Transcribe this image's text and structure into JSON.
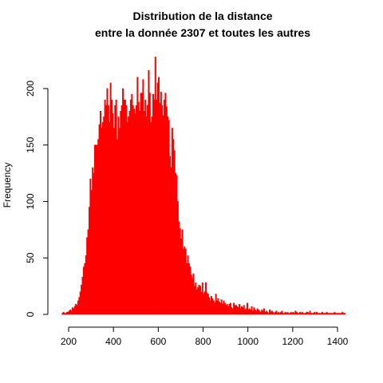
{
  "chart_data": {
    "type": "bar",
    "title_lines": [
      "Distribution de la distance",
      "entre la donnée 2307 et toutes les autres"
    ],
    "xlabel": "",
    "ylabel": "Frequency",
    "xlim": [
      150,
      1450
    ],
    "ylim": [
      0,
      228
    ],
    "x_ticks": [
      200,
      400,
      600,
      800,
      1000,
      1200,
      1400
    ],
    "x_tick_labels": [
      "200",
      "400",
      "600",
      "800",
      "1000",
      "1200",
      "1400"
    ],
    "y_ticks": [
      0,
      50,
      100,
      150,
      200
    ],
    "y_tick_labels": [
      "0",
      "50",
      "100",
      "150",
      "200"
    ],
    "bar_color": "#ff0000",
    "bin_width": 5,
    "bins_start": 170,
    "values": [
      1,
      2,
      1,
      1,
      2,
      2,
      3,
      4,
      3,
      6,
      5,
      7,
      9,
      8,
      12,
      15,
      20,
      26,
      33,
      42,
      45,
      52,
      68,
      75,
      95,
      120,
      110,
      130,
      125,
      150,
      150,
      150,
      155,
      168,
      180,
      165,
      170,
      175,
      190,
      185,
      200,
      185,
      170,
      205,
      190,
      178,
      165,
      185,
      190,
      155,
      175,
      165,
      180,
      185,
      200,
      190,
      190,
      185,
      170,
      175,
      180,
      190,
      195,
      185,
      182,
      178,
      185,
      210,
      188,
      180,
      196,
      196,
      208,
      180,
      190,
      175,
      185,
      216,
      196,
      170,
      175,
      195,
      190,
      228,
      190,
      205,
      210,
      187,
      197,
      185,
      176,
      190,
      196,
      184,
      175,
      172,
      140,
      130,
      165,
      155,
      145,
      125,
      123,
      100,
      82,
      76,
      67,
      75,
      58,
      60,
      58,
      45,
      52,
      45,
      42,
      35,
      32,
      36,
      25,
      28,
      22,
      24,
      26,
      25,
      20,
      28,
      18,
      20,
      28,
      19,
      18,
      15,
      12,
      16,
      14,
      12,
      10,
      18,
      12,
      14,
      11,
      10,
      13,
      9,
      12,
      10,
      8,
      9,
      7,
      9,
      10,
      6,
      5,
      10,
      8,
      8,
      7,
      6,
      9,
      5,
      7,
      6,
      8,
      4,
      5,
      10,
      4,
      5,
      4,
      7,
      3,
      6,
      4,
      3,
      5,
      4,
      3,
      2,
      4,
      3,
      5,
      2,
      3,
      2,
      1,
      4,
      2,
      3,
      2,
      1,
      2,
      3,
      1,
      2,
      1,
      2,
      3,
      1,
      1,
      2,
      1,
      2,
      1,
      1,
      2,
      1,
      2,
      1,
      3,
      2,
      1,
      1,
      2,
      1,
      2,
      1,
      1,
      1,
      2,
      2,
      1,
      3,
      1,
      1,
      1,
      2,
      1,
      2,
      1,
      1,
      1,
      1,
      2,
      1,
      1,
      1,
      2,
      1,
      1,
      1,
      1,
      1,
      1,
      2,
      1,
      1,
      1,
      1,
      1,
      1,
      2,
      1,
      1
    ]
  }
}
